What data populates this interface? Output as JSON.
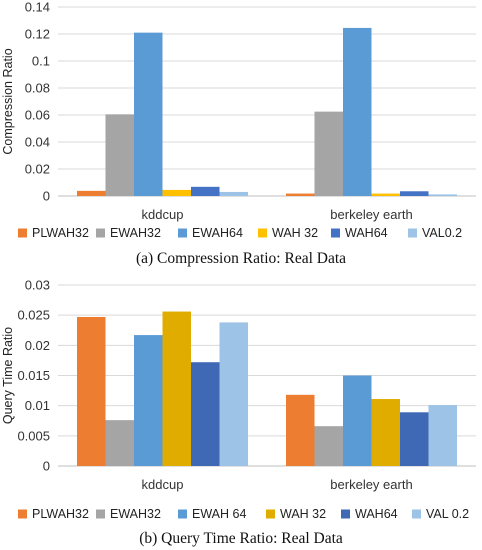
{
  "chart_data": [
    {
      "type": "bar",
      "caption": "(a)  Compression Ratio: Real Data",
      "ylabel": "Compression Ratio",
      "xlabel": "",
      "ylim": [
        0,
        0.14
      ],
      "yticks": [
        "0",
        "0.02",
        "0.04",
        "0.06",
        "0.08",
        "0.1",
        "0.12",
        "0.14"
      ],
      "categories": [
        "kddcup",
        "berkeley earth"
      ],
      "grid": true,
      "legend_position": "bottom",
      "series": [
        {
          "name": "PLWAH32",
          "color": "#ed7d31",
          "values": [
            0.0038,
            0.0018
          ]
        },
        {
          "name": "EWAH32",
          "color": "#a5a5a5",
          "values": [
            0.0605,
            0.0625
          ]
        },
        {
          "name": "EWAH64",
          "color": "#5b9bd5",
          "values": [
            0.121,
            0.1245
          ]
        },
        {
          "name": "WAH 32",
          "color": "#ffc000",
          "values": [
            0.0045,
            0.0018
          ]
        },
        {
          "name": "WAH64",
          "color": "#4472c4",
          "values": [
            0.0068,
            0.0035
          ]
        },
        {
          "name": "VAL0.2",
          "color": "#9dc3e6",
          "values": [
            0.003,
            0.0012
          ]
        }
      ]
    },
    {
      "type": "bar",
      "caption": "(b)  Query Time Ratio: Real Data",
      "ylabel": "Query Time Ratio",
      "xlabel": "",
      "ylim": [
        0,
        0.03
      ],
      "yticks": [
        "0",
        "0.005",
        "0.01",
        "0.015",
        "0.02",
        "0.025",
        "0.03"
      ],
      "categories": [
        "kddcup",
        "berkeley earth"
      ],
      "grid": true,
      "legend_position": "bottom",
      "series": [
        {
          "name": "PLWAH32",
          "color": "#ed7d31",
          "values": [
            0.0247,
            0.0118
          ]
        },
        {
          "name": "EWAH32",
          "color": "#a5a5a5",
          "values": [
            0.0076,
            0.0066
          ]
        },
        {
          "name": "EWAH 64",
          "color": "#5b9bd5",
          "values": [
            0.0217,
            0.015
          ]
        },
        {
          "name": "WAH 32",
          "color": "#e0ac00",
          "values": [
            0.0256,
            0.0111
          ]
        },
        {
          "name": "WAH64",
          "color": "#3f68b5",
          "values": [
            0.0172,
            0.0089
          ]
        },
        {
          "name": "VAL 0.2",
          "color": "#9dc3e6",
          "values": [
            0.0238,
            0.0101
          ]
        }
      ]
    }
  ]
}
